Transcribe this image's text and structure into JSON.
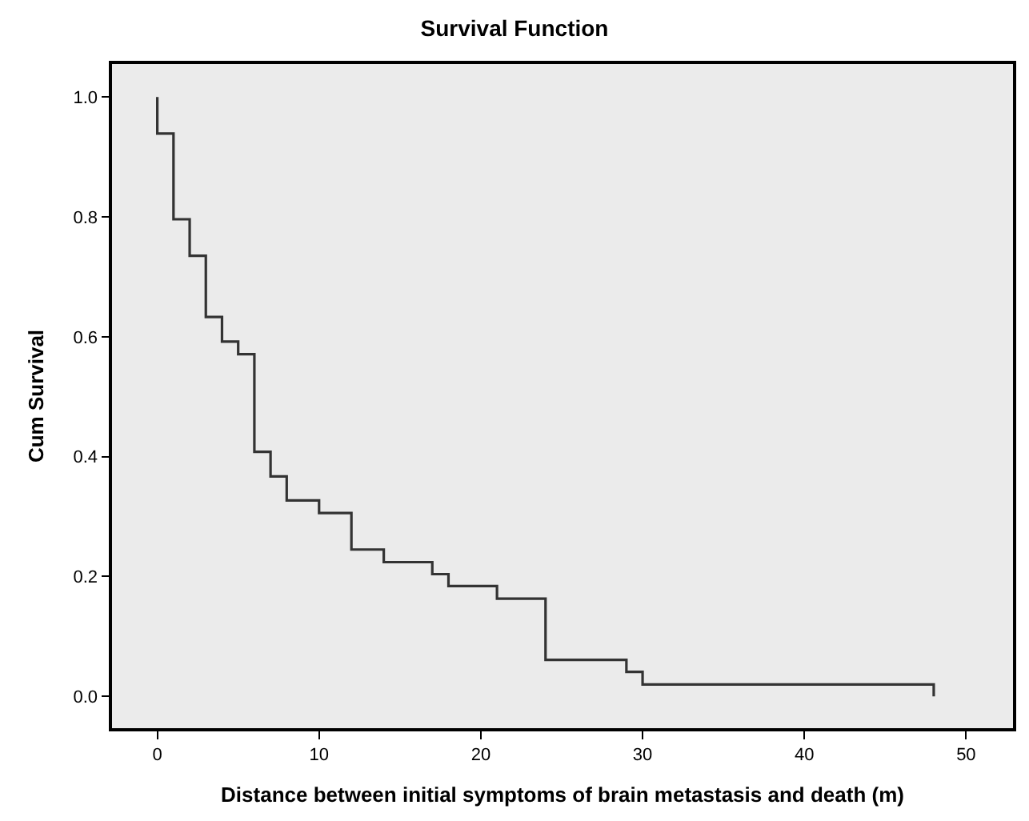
{
  "chart_data": {
    "type": "step",
    "title": "Survival Function",
    "xlabel": "Distance between initial symptoms of brain metastasis and death (m)",
    "ylabel": "Cum Survival",
    "x": [
      0,
      0,
      1,
      2,
      3,
      4,
      5,
      6,
      7,
      8,
      10,
      12,
      14,
      17,
      18,
      21,
      24,
      29,
      30,
      48,
      48
    ],
    "series": [
      {
        "color": "#333333",
        "values": [
          1.0,
          0.939,
          0.796,
          0.735,
          0.633,
          0.592,
          0.571,
          0.408,
          0.367,
          0.327,
          0.306,
          0.245,
          0.224,
          0.204,
          0.184,
          0.163,
          0.061,
          0.041,
          0.02,
          0.02,
          0.0
        ]
      }
    ],
    "xlim": [
      -2.8,
      52.9
    ],
    "xticks": [
      0,
      10,
      20,
      30,
      40,
      50
    ],
    "ylim": [
      -0.053,
      1.055
    ],
    "yticks": [
      {
        "value": 0,
        "label": "0.0"
      },
      {
        "value": 0.2,
        "label": "0.2"
      },
      {
        "value": 0.4,
        "label": "0.4"
      },
      {
        "value": 0.6,
        "label": "0.6"
      },
      {
        "value": 0.8,
        "label": "0.8"
      },
      {
        "value": 1,
        "label": "1.0"
      }
    ],
    "grid": false,
    "marker": "none",
    "line_style": "solid"
  }
}
